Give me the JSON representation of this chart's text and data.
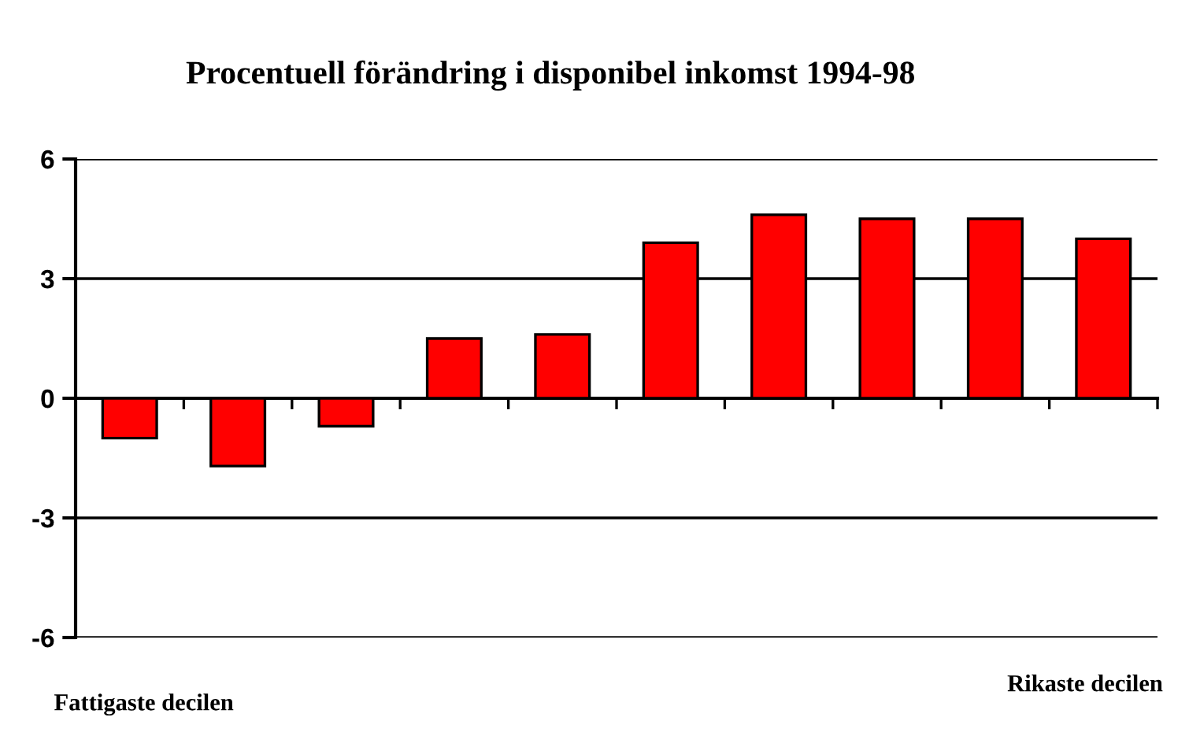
{
  "chart_data": {
    "type": "bar",
    "title": "Procentuell förändring i disponibel inkomst 1994-98",
    "categories": [
      "Fattigaste decilen",
      null,
      null,
      null,
      null,
      null,
      null,
      null,
      null,
      "Rikaste decilen"
    ],
    "values": [
      -1.0,
      -1.7,
      -0.7,
      1.5,
      1.6,
      3.9,
      4.6,
      4.5,
      4.5,
      4.0
    ],
    "color": "#ff0000",
    "ylim": [
      -6,
      6
    ],
    "yticks": [
      -6,
      -3,
      0,
      3,
      6
    ],
    "grid": "y"
  }
}
